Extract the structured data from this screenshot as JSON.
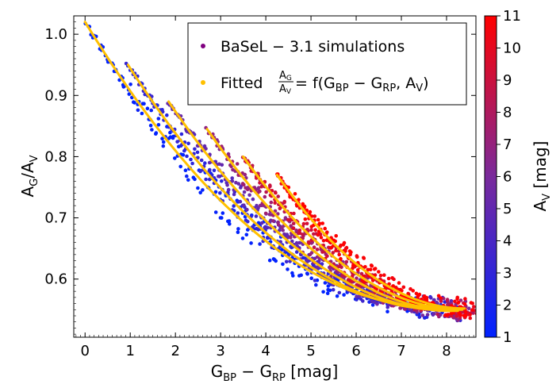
{
  "chart_data": {
    "type": "scatter",
    "x_axis": {
      "label_main": "G",
      "label_sub1": "BP",
      "label_mid": " − G",
      "label_sub2": "RP",
      "label_unit": " [mag]",
      "range": [
        -0.25,
        8.65
      ],
      "ticks": [
        "0",
        "1",
        "2",
        "3",
        "4",
        "5",
        "6",
        "7",
        "8"
      ]
    },
    "y_axis": {
      "label_main": "A",
      "label_sub1": "G",
      "label_mid": "/A",
      "label_sub2": "V",
      "range": [
        0.505,
        1.03
      ],
      "ticks": [
        "0.6",
        "0.7",
        "0.8",
        "0.9",
        "1.0"
      ]
    },
    "colorbar": {
      "label_main": "A",
      "label_sub": "V",
      "label_unit": " [mag]",
      "range": [
        1,
        11
      ],
      "ticks": [
        "1",
        "2",
        "3",
        "4",
        "5",
        "6",
        "7",
        "8",
        "9",
        "10",
        "11"
      ],
      "colors": [
        "#0022ff",
        "#7a2a9c",
        "#ff0000"
      ]
    },
    "legend": {
      "position": "upper-right",
      "items": [
        {
          "marker_color": "#800080",
          "text": "BaSeL − 3.1 simulations"
        },
        {
          "marker_color": "#ffc000",
          "prefix": "Fitted ",
          "frac_num": "A",
          "frac_num_sub": "G",
          "frac_den": "A",
          "frac_den_sub": "V",
          "suffix": " = f(G",
          "suffix_sub1": "BP",
          "suffix_mid": " − G",
          "suffix_sub2": "RP",
          "suffix_end": ", A",
          "suffix_sub3": "V",
          "suffix_close": ")"
        }
      ]
    },
    "fit_color": "#ffc000",
    "series": [
      {
        "av": 1,
        "x_start": 0.0,
        "y_start": 1.02,
        "x_end": 7.7,
        "y_end": 0.555
      },
      {
        "av": 3,
        "x_start": 0.95,
        "y_start": 0.95,
        "x_end": 7.9,
        "y_end": 0.55
      },
      {
        "av": 5,
        "x_start": 1.85,
        "y_start": 0.89,
        "x_end": 8.1,
        "y_end": 0.548
      },
      {
        "av": 7,
        "x_start": 2.7,
        "y_start": 0.845,
        "x_end": 8.25,
        "y_end": 0.548
      },
      {
        "av": 9,
        "x_start": 3.5,
        "y_start": 0.8,
        "x_end": 8.35,
        "y_end": 0.55
      },
      {
        "av": 11,
        "x_start": 4.25,
        "y_start": 0.77,
        "x_end": 8.4,
        "y_end": 0.552
      }
    ]
  }
}
